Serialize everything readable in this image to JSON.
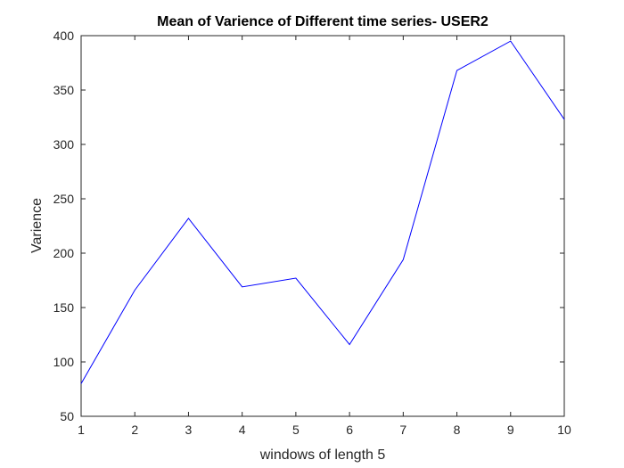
{
  "chart_data": {
    "type": "line",
    "title": "Mean of Varience of Different time series- USER2",
    "xlabel": "windows of length 5",
    "ylabel": "Varience",
    "xlim": [
      1,
      10
    ],
    "ylim": [
      50,
      400
    ],
    "x_ticks": [
      "1",
      "2",
      "3",
      "4",
      "5",
      "6",
      "7",
      "8",
      "9",
      "10"
    ],
    "y_ticks": [
      "50",
      "100",
      "150",
      "200",
      "250",
      "300",
      "350",
      "400"
    ],
    "x": [
      1,
      2,
      3,
      4,
      5,
      6,
      7,
      8,
      9,
      10
    ],
    "series": [
      {
        "values": [
          80,
          166,
          232,
          169,
          177,
          116,
          194,
          368,
          395,
          323
        ],
        "color": "#0000ff"
      }
    ],
    "grid": false,
    "box": true
  }
}
